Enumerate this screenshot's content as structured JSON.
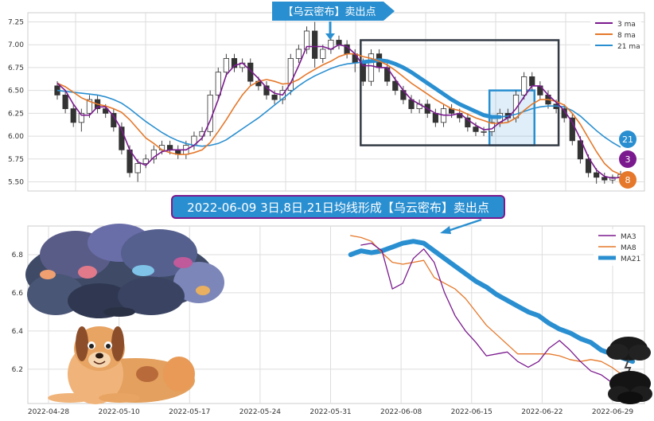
{
  "colors": {
    "ma3": "#7b1a8e",
    "ma8": "#e5782a",
    "ma21": "#2a8fd0",
    "up": "#ffffff",
    "down": "#333333",
    "wick": "#444444",
    "box_dark": "#333a44",
    "box_blue": "#2a8fd0",
    "banner_bg": "#2a8fd0",
    "banner_text": "#ffffff",
    "grid": "#dddddd"
  },
  "top_banner": "【乌云密布】卖出点",
  "bottom_banner": "2022-06-09 3日,8日,21日均线形成【乌云密布】卖出点",
  "badges": [
    {
      "label": "21",
      "color_key": "ma21"
    },
    {
      "label": "3",
      "color_key": "ma3"
    },
    {
      "label": "8",
      "color_key": "ma8"
    }
  ],
  "illustrations": [
    {
      "name": "colorful-storm-cloud-illustration"
    },
    {
      "name": "lying-dog-illustration"
    },
    {
      "name": "dark-cloud-icon"
    }
  ],
  "chart_data": [
    {
      "type": "candlestick",
      "ylim": [
        5.4,
        7.35
      ],
      "yticks": [
        5.5,
        5.75,
        6.0,
        6.25,
        6.5,
        6.75,
        7.0,
        7.25
      ],
      "ytick_labels": [
        "5.50",
        "5.75",
        "6.00",
        "6.25",
        "6.50",
        "6.75",
        "7.00",
        "7.25"
      ],
      "legend_position": "top-right",
      "grid": true,
      "series": [
        {
          "name": "3 ma",
          "key": "ma3"
        },
        {
          "name": "8 ma",
          "key": "ma8"
        },
        {
          "name": "21 ma",
          "key": "ma21"
        }
      ],
      "ohlc": [
        [
          6.55,
          6.6,
          6.4,
          6.45
        ],
        [
          6.45,
          6.5,
          6.25,
          6.3
        ],
        [
          6.3,
          6.35,
          6.1,
          6.15
        ],
        [
          6.15,
          6.3,
          6.05,
          6.25
        ],
        [
          6.25,
          6.45,
          6.2,
          6.4
        ],
        [
          6.4,
          6.45,
          6.25,
          6.3
        ],
        [
          6.3,
          6.35,
          6.2,
          6.25
        ],
        [
          6.25,
          6.3,
          6.05,
          6.1
        ],
        [
          6.1,
          6.15,
          5.8,
          5.85
        ],
        [
          5.85,
          5.9,
          5.55,
          5.6
        ],
        [
          5.6,
          5.75,
          5.5,
          5.7
        ],
        [
          5.7,
          5.8,
          5.65,
          5.75
        ],
        [
          5.75,
          5.9,
          5.7,
          5.85
        ],
        [
          5.85,
          5.95,
          5.8,
          5.9
        ],
        [
          5.9,
          5.95,
          5.8,
          5.85
        ],
        [
          5.85,
          5.9,
          5.75,
          5.8
        ],
        [
          5.8,
          5.95,
          5.75,
          5.9
        ],
        [
          5.9,
          6.05,
          5.85,
          6.0
        ],
        [
          6.0,
          6.1,
          5.95,
          6.05
        ],
        [
          6.05,
          6.5,
          6.0,
          6.45
        ],
        [
          6.45,
          6.75,
          6.4,
          6.7
        ],
        [
          6.7,
          6.9,
          6.65,
          6.85
        ],
        [
          6.85,
          6.9,
          6.7,
          6.75
        ],
        [
          6.75,
          6.85,
          6.7,
          6.8
        ],
        [
          6.8,
          6.85,
          6.55,
          6.6
        ],
        [
          6.6,
          6.65,
          6.5,
          6.55
        ],
        [
          6.55,
          6.6,
          6.4,
          6.45
        ],
        [
          6.45,
          6.5,
          6.35,
          6.4
        ],
        [
          6.4,
          6.55,
          6.35,
          6.5
        ],
        [
          6.5,
          6.9,
          6.45,
          6.85
        ],
        [
          6.85,
          7.0,
          6.8,
          6.95
        ],
        [
          6.95,
          7.2,
          6.9,
          7.15
        ],
        [
          7.15,
          7.25,
          6.75,
          6.85
        ],
        [
          6.85,
          7.0,
          6.8,
          6.95
        ],
        [
          6.95,
          7.1,
          6.9,
          7.05
        ],
        [
          7.05,
          7.1,
          6.95,
          7.0
        ],
        [
          7.0,
          7.05,
          6.85,
          6.9
        ],
        [
          6.9,
          6.95,
          6.7,
          6.8
        ],
        [
          6.8,
          6.85,
          6.55,
          6.6
        ],
        [
          6.6,
          6.95,
          6.55,
          6.9
        ],
        [
          6.9,
          6.95,
          6.7,
          6.75
        ],
        [
          6.75,
          6.8,
          6.55,
          6.6
        ],
        [
          6.6,
          6.65,
          6.45,
          6.5
        ],
        [
          6.5,
          6.55,
          6.35,
          6.4
        ],
        [
          6.4,
          6.45,
          6.25,
          6.3
        ],
        [
          6.3,
          6.4,
          6.25,
          6.35
        ],
        [
          6.35,
          6.4,
          6.2,
          6.25
        ],
        [
          6.25,
          6.3,
          6.1,
          6.15
        ],
        [
          6.15,
          6.35,
          6.1,
          6.3
        ],
        [
          6.3,
          6.35,
          6.2,
          6.25
        ],
        [
          6.25,
          6.3,
          6.15,
          6.2
        ],
        [
          6.2,
          6.25,
          6.05,
          6.1
        ],
        [
          6.1,
          6.15,
          6.0,
          6.05
        ],
        [
          6.05,
          6.1,
          6.0,
          6.05
        ],
        [
          6.05,
          6.2,
          6.0,
          6.15
        ],
        [
          6.15,
          6.3,
          6.1,
          6.25
        ],
        [
          6.25,
          6.3,
          6.15,
          6.2
        ],
        [
          6.2,
          6.5,
          6.15,
          6.45
        ],
        [
          6.45,
          6.7,
          6.4,
          6.65
        ],
        [
          6.65,
          6.7,
          6.5,
          6.55
        ],
        [
          6.55,
          6.6,
          6.4,
          6.45
        ],
        [
          6.45,
          6.5,
          6.3,
          6.35
        ],
        [
          6.35,
          6.4,
          6.25,
          6.3
        ],
        [
          6.3,
          6.35,
          6.15,
          6.2
        ],
        [
          6.2,
          6.25,
          5.9,
          5.95
        ],
        [
          5.95,
          6.0,
          5.7,
          5.75
        ],
        [
          5.75,
          5.8,
          5.55,
          5.6
        ],
        [
          5.6,
          5.65,
          5.48,
          5.55
        ],
        [
          5.55,
          5.6,
          5.48,
          5.52
        ],
        [
          5.52,
          5.58,
          5.48,
          5.55
        ],
        [
          5.55,
          5.62,
          5.5,
          5.58
        ]
      ],
      "ma3": [
        6.58,
        6.5,
        6.35,
        6.23,
        6.23,
        6.32,
        6.32,
        6.22,
        6.07,
        5.85,
        5.72,
        5.68,
        5.77,
        5.83,
        5.85,
        5.85,
        5.85,
        5.9,
        5.98,
        6.17,
        6.4,
        6.67,
        6.77,
        6.8,
        6.72,
        6.63,
        6.53,
        6.47,
        6.45,
        6.58,
        6.77,
        6.98,
        6.98,
        6.98,
        6.95,
        7.0,
        6.98,
        6.9,
        6.77,
        6.77,
        6.75,
        6.75,
        6.62,
        6.5,
        6.4,
        6.35,
        6.3,
        6.25,
        6.23,
        6.23,
        6.25,
        6.18,
        6.12,
        6.07,
        6.08,
        6.15,
        6.2,
        6.3,
        6.43,
        6.55,
        6.55,
        6.45,
        6.37,
        6.28,
        6.15,
        5.97,
        5.77,
        5.63,
        5.56,
        5.54,
        5.55
      ],
      "ma8": [
        6.58,
        6.54,
        6.48,
        6.42,
        6.38,
        6.35,
        6.33,
        6.3,
        6.26,
        6.18,
        6.08,
        5.98,
        5.92,
        5.85,
        5.82,
        5.8,
        5.8,
        5.82,
        5.85,
        5.93,
        6.05,
        6.18,
        6.32,
        6.45,
        6.55,
        6.6,
        6.62,
        6.6,
        6.57,
        6.58,
        6.62,
        6.68,
        6.73,
        6.78,
        6.82,
        6.87,
        6.9,
        6.9,
        6.87,
        6.85,
        6.82,
        6.78,
        6.72,
        6.65,
        6.58,
        6.52,
        6.46,
        6.4,
        6.35,
        6.3,
        6.28,
        6.24,
        6.2,
        6.17,
        6.14,
        6.14,
        6.15,
        6.2,
        6.28,
        6.35,
        6.4,
        6.4,
        6.38,
        6.34,
        6.25,
        6.13,
        5.98,
        5.83,
        5.7,
        5.62,
        5.58
      ],
      "ma21": [
        6.5,
        6.49,
        6.48,
        6.47,
        6.46,
        6.45,
        6.43,
        6.4,
        6.36,
        6.3,
        6.23,
        6.16,
        6.1,
        6.04,
        5.99,
        5.95,
        5.92,
        5.9,
        5.89,
        5.9,
        5.92,
        5.96,
        6.02,
        6.08,
        6.14,
        6.2,
        6.27,
        6.34,
        6.41,
        6.48,
        6.55,
        6.61,
        6.66,
        6.7,
        6.74,
        6.77,
        6.79,
        6.8,
        6.81,
        6.82,
        6.83,
        6.82,
        6.79,
        6.75,
        6.7,
        6.64,
        6.58,
        6.52,
        6.46,
        6.4,
        6.35,
        6.31,
        6.27,
        6.23,
        6.21,
        6.21,
        6.22,
        6.24,
        6.27,
        6.3,
        6.32,
        6.33,
        6.33,
        6.32,
        6.28,
        6.22,
        6.14,
        6.06,
        5.99,
        5.93,
        5.88
      ],
      "highlight_dark": {
        "from_index": 38,
        "to_index": 62,
        "ymin": 5.9,
        "ymax": 7.05
      },
      "highlight_blue": {
        "from_index": 54,
        "to_index": 59,
        "ymin": 5.9,
        "ymax": 6.5
      },
      "ma21_thick": {
        "from_index": 38,
        "to_index": 55
      }
    },
    {
      "type": "line",
      "ylim": [
        6.02,
        6.95
      ],
      "yticks": [
        6.2,
        6.4,
        6.6,
        6.8
      ],
      "ytick_labels": [
        "6.2",
        "6.4",
        "6.6",
        "6.8"
      ],
      "x_labels": [
        "2022-04-28",
        "2022-05-10",
        "2022-05-17",
        "2022-05-24",
        "2022-05-31",
        "2022-06-08",
        "2022-06-15",
        "2022-06-22",
        "2022-06-29"
      ],
      "legend_position": "top-right",
      "grid": true,
      "series": [
        {
          "name": "MA3",
          "key": "ma3",
          "start_index": 30,
          "values": [
            6.85,
            6.86,
            6.82,
            6.62,
            6.65,
            6.78,
            6.83,
            6.76,
            6.6,
            6.48,
            6.4,
            6.34,
            6.27,
            6.28,
            6.29,
            6.24,
            6.21,
            6.24,
            6.31,
            6.35,
            6.3,
            6.24,
            6.19,
            6.17,
            6.13,
            6.1,
            6.07
          ]
        },
        {
          "name": "MA8",
          "key": "ma8",
          "start_index": 29,
          "values": [
            6.9,
            6.89,
            6.87,
            6.81,
            6.76,
            6.75,
            6.76,
            6.77,
            6.68,
            6.65,
            6.62,
            6.57,
            6.5,
            6.43,
            6.38,
            6.33,
            6.28,
            6.28,
            6.28,
            6.28,
            6.27,
            6.25,
            6.24,
            6.25,
            6.24,
            6.21,
            6.17,
            6.15
          ]
        },
        {
          "name": "MA21",
          "key": "ma21",
          "start_index": 29,
          "values": [
            6.8,
            6.82,
            6.81,
            6.82,
            6.84,
            6.86,
            6.87,
            6.86,
            6.82,
            6.78,
            6.74,
            6.7,
            6.66,
            6.63,
            6.59,
            6.56,
            6.53,
            6.5,
            6.48,
            6.44,
            6.41,
            6.39,
            6.36,
            6.34,
            6.3,
            6.28,
            6.26,
            6.24
          ]
        }
      ],
      "x_index_count": 56
    }
  ]
}
